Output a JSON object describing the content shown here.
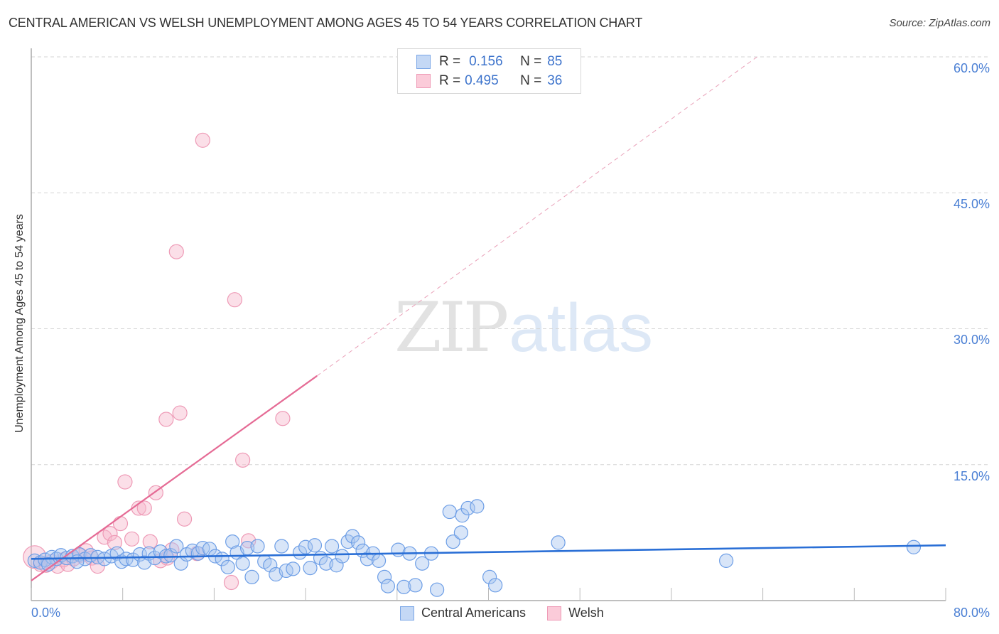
{
  "header": {
    "title": "CENTRAL AMERICAN VS WELSH UNEMPLOYMENT AMONG AGES 45 TO 54 YEARS CORRELATION CHART",
    "source": "Source: ZipAtlas.com"
  },
  "legend": {
    "rows": [
      {
        "series": "Central Americans",
        "r_label": "R =",
        "r_value": "0.156",
        "n_label": "N =",
        "n_value": "85",
        "color": "#a9c6f0"
      },
      {
        "series": "Welsh",
        "r_label": "R =",
        "r_value": "0.495",
        "n_label": "N =",
        "n_value": "36",
        "color": "#f7b8cb"
      }
    ]
  },
  "bottom_legend": [
    {
      "label": "Central Americans",
      "color": "#a9c6f0"
    },
    {
      "label": "Welsh",
      "color": "#f7b8cb"
    }
  ],
  "watermark": {
    "zip": "ZIP",
    "atlas": "atlas"
  },
  "axes": {
    "y_label": "Unemployment Among Ages 45 to 54 years",
    "y_ticks": [
      "60.0%",
      "45.0%",
      "30.0%",
      "15.0%"
    ],
    "x_min_label": "0.0%",
    "x_max_label": "80.0%"
  },
  "chart_data": {
    "type": "scatter",
    "title": "CENTRAL AMERICAN VS WELSH UNEMPLOYMENT AMONG AGES 45 TO 54 YEARS CORRELATION CHART",
    "xlabel": "",
    "ylabel": "Unemployment Among Ages 45 to 54 years",
    "xlim": [
      0,
      80
    ],
    "ylim": [
      0,
      60
    ],
    "x_ticks": [
      0,
      80
    ],
    "y_ticks": [
      15,
      30,
      45,
      60
    ],
    "grid": "horizontal dashed",
    "legend_position": "top-center and bottom",
    "series": [
      {
        "name": "Central Americans",
        "color": "#6d9ee6",
        "R": 0.156,
        "N": 85,
        "trend": {
          "x0": 0,
          "y0": 4.6,
          "x1": 80,
          "y1": 6.1
        },
        "points": [
          [
            0.3,
            4.4
          ],
          [
            0.8,
            4.2
          ],
          [
            1.2,
            4.5
          ],
          [
            1.8,
            4.8
          ],
          [
            2.2,
            4.6
          ],
          [
            2.6,
            5.0
          ],
          [
            3.1,
            4.7
          ],
          [
            3.6,
            4.9
          ],
          [
            4.2,
            5.1
          ],
          [
            4.7,
            4.6
          ],
          [
            5.2,
            5.0
          ],
          [
            5.8,
            4.8
          ],
          [
            6.4,
            4.6
          ],
          [
            7.0,
            4.9
          ],
          [
            7.5,
            5.2
          ],
          [
            7.9,
            4.3
          ],
          [
            8.3,
            4.6
          ],
          [
            8.9,
            4.5
          ],
          [
            9.5,
            5.1
          ],
          [
            9.9,
            4.2
          ],
          [
            10.3,
            5.2
          ],
          [
            10.8,
            4.7
          ],
          [
            11.3,
            5.4
          ],
          [
            11.8,
            4.9
          ],
          [
            12.2,
            5.0
          ],
          [
            12.7,
            6.0
          ],
          [
            13.1,
            4.1
          ],
          [
            13.6,
            5.1
          ],
          [
            14.1,
            5.5
          ],
          [
            14.6,
            5.2
          ],
          [
            15.0,
            5.8
          ],
          [
            15.6,
            5.7
          ],
          [
            16.1,
            4.9
          ],
          [
            16.7,
            4.6
          ],
          [
            17.2,
            3.7
          ],
          [
            17.6,
            6.5
          ],
          [
            18.0,
            5.3
          ],
          [
            18.5,
            4.1
          ],
          [
            18.9,
            5.8
          ],
          [
            19.3,
            2.6
          ],
          [
            19.8,
            6.0
          ],
          [
            20.4,
            4.3
          ],
          [
            20.9,
            3.9
          ],
          [
            21.4,
            2.9
          ],
          [
            21.9,
            6.0
          ],
          [
            22.3,
            3.3
          ],
          [
            22.9,
            3.5
          ],
          [
            23.5,
            5.3
          ],
          [
            24.0,
            5.9
          ],
          [
            24.4,
            3.6
          ],
          [
            24.8,
            6.1
          ],
          [
            25.3,
            4.7
          ],
          [
            25.8,
            4.1
          ],
          [
            26.3,
            6.0
          ],
          [
            26.7,
            3.9
          ],
          [
            27.2,
            4.9
          ],
          [
            27.7,
            6.5
          ],
          [
            28.1,
            7.1
          ],
          [
            28.6,
            6.4
          ],
          [
            29.0,
            5.5
          ],
          [
            29.4,
            4.6
          ],
          [
            29.9,
            5.2
          ],
          [
            30.4,
            4.4
          ],
          [
            30.9,
            2.6
          ],
          [
            31.2,
            1.6
          ],
          [
            32.1,
            5.6
          ],
          [
            32.6,
            1.5
          ],
          [
            33.1,
            5.2
          ],
          [
            33.6,
            1.7
          ],
          [
            34.2,
            4.1
          ],
          [
            35.0,
            5.2
          ],
          [
            35.5,
            1.2
          ],
          [
            36.6,
            9.8
          ],
          [
            36.9,
            6.5
          ],
          [
            37.6,
            7.5
          ],
          [
            37.7,
            9.4
          ],
          [
            38.2,
            10.2
          ],
          [
            39.0,
            10.4
          ],
          [
            40.1,
            2.6
          ],
          [
            40.6,
            1.7
          ],
          [
            46.1,
            6.4
          ],
          [
            60.8,
            4.4
          ],
          [
            77.2,
            5.9
          ],
          [
            1.5,
            4.0
          ],
          [
            4.0,
            4.3
          ]
        ]
      },
      {
        "name": "Welsh",
        "color": "#f08fb0",
        "R": 0.495,
        "N": 36,
        "trend": {
          "x0": 0,
          "y0": 2.2,
          "x1": 25,
          "y1": 24.8,
          "dashed_extension_to": {
            "x": 63.5,
            "y": 60
          }
        },
        "points": [
          [
            0.3,
            4.8
          ],
          [
            0.8,
            4.0
          ],
          [
            1.3,
            3.9
          ],
          [
            1.8,
            4.3
          ],
          [
            2.3,
            3.8
          ],
          [
            2.8,
            4.5
          ],
          [
            3.2,
            4.0
          ],
          [
            3.7,
            4.6
          ],
          [
            4.3,
            5.0
          ],
          [
            4.8,
            5.5
          ],
          [
            5.3,
            4.7
          ],
          [
            5.8,
            3.8
          ],
          [
            6.4,
            7.0
          ],
          [
            6.9,
            7.4
          ],
          [
            7.3,
            6.4
          ],
          [
            7.8,
            8.5
          ],
          [
            8.2,
            13.1
          ],
          [
            8.8,
            6.8
          ],
          [
            9.4,
            10.2
          ],
          [
            9.9,
            10.2
          ],
          [
            10.4,
            6.5
          ],
          [
            10.9,
            11.9
          ],
          [
            11.3,
            4.4
          ],
          [
            11.9,
            4.7
          ],
          [
            12.3,
            5.6
          ],
          [
            12.7,
            38.5
          ],
          [
            13.0,
            20.7
          ],
          [
            13.4,
            9.0
          ],
          [
            14.5,
            5.2
          ],
          [
            15.0,
            50.8
          ],
          [
            17.5,
            2.0
          ],
          [
            17.8,
            33.2
          ],
          [
            18.5,
            15.5
          ],
          [
            19.0,
            6.6
          ],
          [
            22.0,
            20.1
          ],
          [
            11.8,
            20.0
          ]
        ]
      }
    ]
  }
}
